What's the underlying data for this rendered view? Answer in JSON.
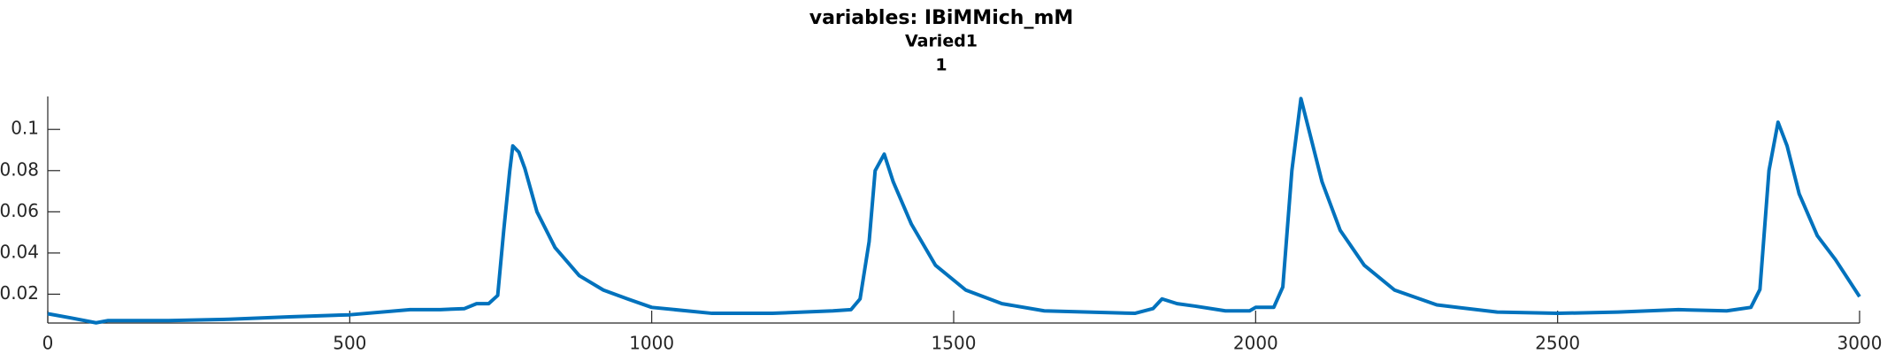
{
  "chart_data": {
    "type": "line",
    "title": "variables: IBiMMich_mM",
    "subtitle": [
      "Varied1",
      "1"
    ],
    "x": [
      0,
      40,
      80,
      100,
      150,
      200,
      300,
      400,
      500,
      600,
      650,
      690,
      710,
      730,
      745,
      755,
      765,
      770,
      780,
      790,
      810,
      840,
      880,
      920,
      960,
      1000,
      1100,
      1200,
      1300,
      1330,
      1345,
      1360,
      1370,
      1385,
      1400,
      1430,
      1470,
      1520,
      1580,
      1650,
      1800,
      1830,
      1845,
      1870,
      1900,
      1950,
      1990,
      2000,
      2030,
      2045,
      2060,
      2075,
      2090,
      2110,
      2140,
      2180,
      2230,
      2300,
      2400,
      2500,
      2600,
      2700,
      2780,
      2820,
      2835,
      2850,
      2865,
      2880,
      2900,
      2930,
      2960,
      3000
    ],
    "series": [
      {
        "name": "IBiMMich_mM",
        "color": "#0072bd",
        "values": [
          0.0105,
          0.0084,
          0.0061,
          0.0072,
          0.0072,
          0.0072,
          0.0078,
          0.009,
          0.01,
          0.0125,
          0.0125,
          0.013,
          0.0154,
          0.0154,
          0.0194,
          0.051,
          0.08,
          0.092,
          0.089,
          0.081,
          0.06,
          0.0426,
          0.029,
          0.022,
          0.0177,
          0.0136,
          0.0107,
          0.0107,
          0.0119,
          0.0125,
          0.0177,
          0.0455,
          0.08,
          0.088,
          0.0745,
          0.054,
          0.034,
          0.022,
          0.0154,
          0.0119,
          0.0107,
          0.013,
          0.0177,
          0.0154,
          0.0142,
          0.0119,
          0.0119,
          0.0136,
          0.0136,
          0.0235,
          0.08,
          0.115,
          0.0977,
          0.0745,
          0.051,
          0.034,
          0.022,
          0.0148,
          0.0113,
          0.0107,
          0.0113,
          0.0125,
          0.0119,
          0.0136,
          0.0223,
          0.08,
          0.1035,
          0.092,
          0.0687,
          0.0484,
          0.0368,
          0.0188
        ]
      }
    ],
    "xlim": [
      0,
      3000
    ],
    "xticks": [
      0,
      500,
      1000,
      1500,
      2000,
      2500,
      3000
    ],
    "ylim": [
      0.006,
      0.116
    ],
    "yticks": [
      0.02,
      0.04,
      0.06,
      0.08,
      0.1
    ],
    "grid": false
  }
}
